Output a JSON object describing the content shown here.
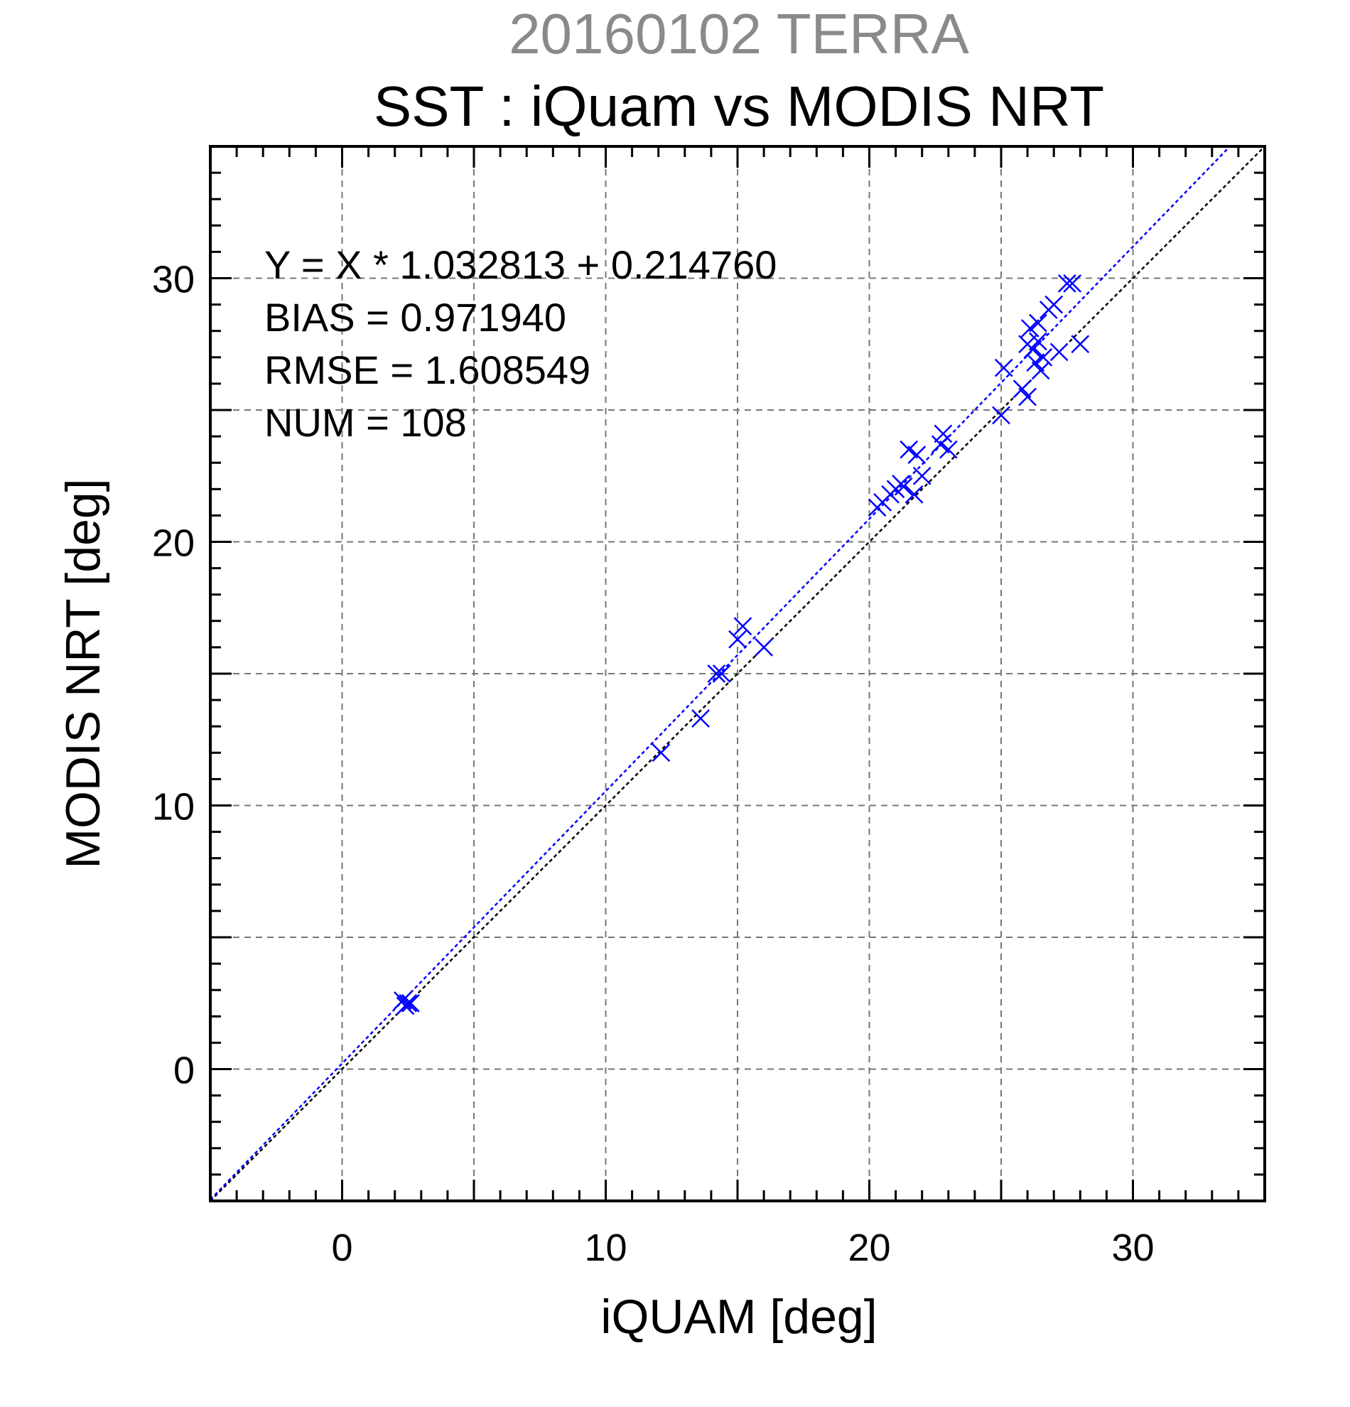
{
  "page": {
    "title": "20160102 TERRA",
    "chart_title": "SST : iQuam vs MODIS NRT"
  },
  "chart_data": {
    "type": "scatter",
    "title": "SST : iQuam vs MODIS NRT",
    "xlabel": "iQUAM [deg]",
    "ylabel": "MODIS NRT [deg]",
    "xlim": [
      -5,
      35
    ],
    "ylim": [
      -5,
      35
    ],
    "xticks": [
      0,
      10,
      20,
      30
    ],
    "yticks": [
      0,
      10,
      20,
      30
    ],
    "grid": true,
    "annotations": [
      "Y = X * 1.032813 + 0.214760",
      "BIAS = 0.971940",
      "RMSE = 1.608549",
      "NUM = 108"
    ],
    "fit_line": {
      "slope": 1.032813,
      "intercept": 0.21476,
      "color": "#0000ff"
    },
    "identity_line": {
      "slope": 1,
      "intercept": 0,
      "color": "#000000"
    },
    "marker_color": "#0000ff",
    "points": [
      [
        2.3,
        2.6
      ],
      [
        2.5,
        2.5
      ],
      [
        2.4,
        2.4
      ],
      [
        2.6,
        2.5
      ],
      [
        12.1,
        12.0
      ],
      [
        13.6,
        13.3
      ],
      [
        14.2,
        15.0
      ],
      [
        14.4,
        15.0
      ],
      [
        15.0,
        16.3
      ],
      [
        15.2,
        16.8
      ],
      [
        16.0,
        16.0
      ],
      [
        20.3,
        21.3
      ],
      [
        20.5,
        21.5
      ],
      [
        20.8,
        21.8
      ],
      [
        21.0,
        22.0
      ],
      [
        21.2,
        22.2
      ],
      [
        21.3,
        22.1
      ],
      [
        21.5,
        23.5
      ],
      [
        21.7,
        21.8
      ],
      [
        21.8,
        23.3
      ],
      [
        22.0,
        22.5
      ],
      [
        22.8,
        24.1
      ],
      [
        22.7,
        23.7
      ],
      [
        23.0,
        23.5
      ],
      [
        25.0,
        24.8
      ],
      [
        25.1,
        26.6
      ],
      [
        25.8,
        25.8
      ],
      [
        26.0,
        25.5
      ],
      [
        26.0,
        27.5
      ],
      [
        26.1,
        28.1
      ],
      [
        26.2,
        27.3
      ],
      [
        26.3,
        26.8
      ],
      [
        26.4,
        27.6
      ],
      [
        26.4,
        28.3
      ],
      [
        26.5,
        26.5
      ],
      [
        26.6,
        27.0
      ],
      [
        26.8,
        28.8
      ],
      [
        27.0,
        29.0
      ],
      [
        27.2,
        27.2
      ],
      [
        27.5,
        29.8
      ],
      [
        27.7,
        29.8
      ],
      [
        28.0,
        27.5
      ]
    ]
  }
}
